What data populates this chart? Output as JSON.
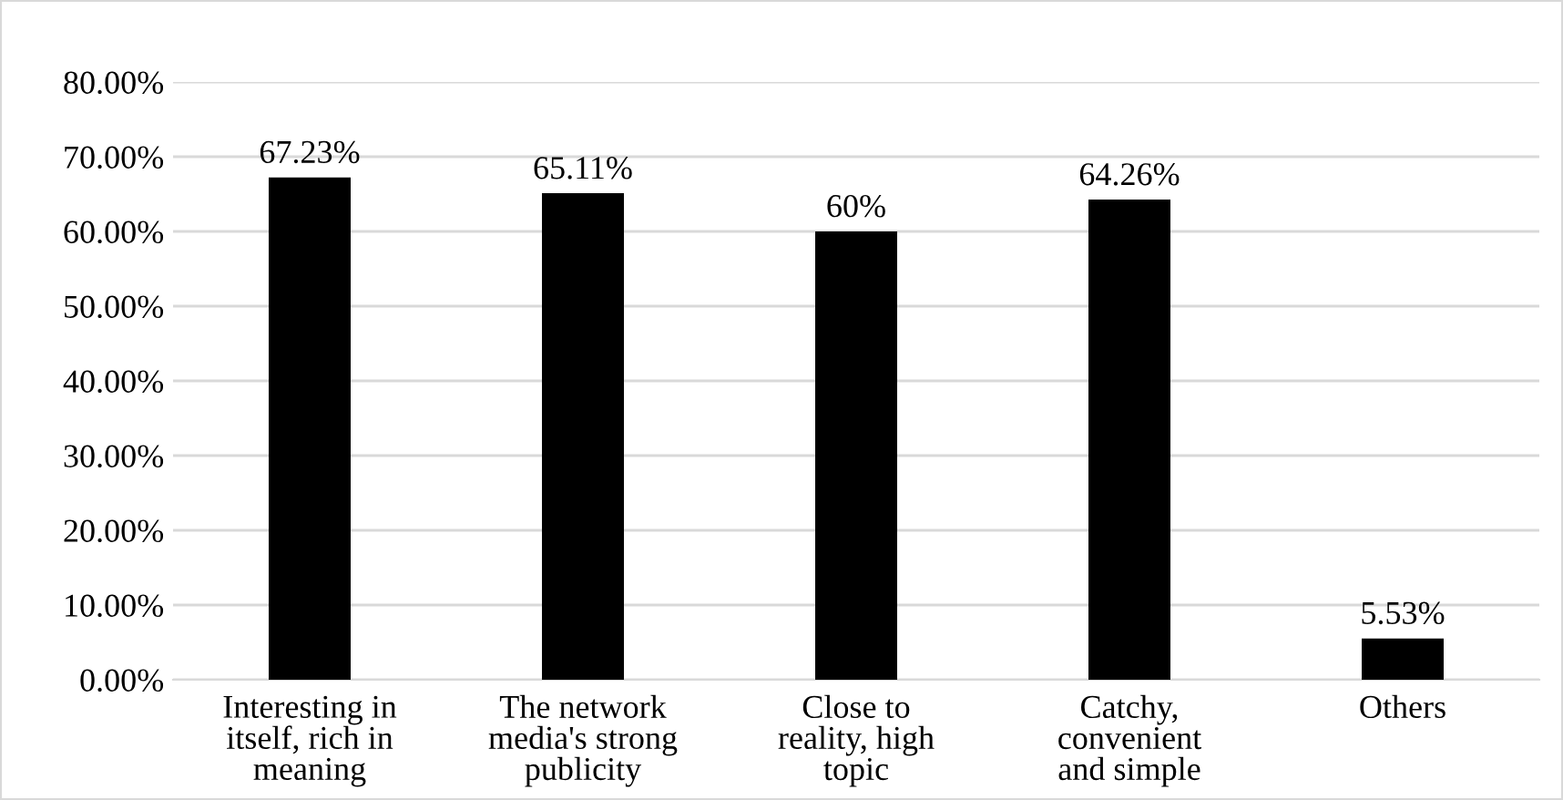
{
  "chart_data": {
    "type": "bar",
    "categories": [
      "Interesting in\nitself, rich in\nmeaning",
      "The network\nmedia's strong\npublicity",
      "Close to\nreality, high\ntopic",
      "Catchy,\nconvenient\nand simple",
      "Others"
    ],
    "values": [
      67.23,
      65.11,
      60,
      64.26,
      5.53
    ],
    "value_labels": [
      "67.23%",
      "65.11%",
      "60%",
      "64.26%",
      "5.53%"
    ],
    "color": "#000000",
    "ylim": [
      0,
      80
    ],
    "yticks": [
      {
        "value": 0,
        "label": "0.00%"
      },
      {
        "value": 10,
        "label": "10.00%"
      },
      {
        "value": 20,
        "label": "20.00%"
      },
      {
        "value": 30,
        "label": "30.00%"
      },
      {
        "value": 40,
        "label": "40.00%"
      },
      {
        "value": 50,
        "label": "50.00%"
      },
      {
        "value": 60,
        "label": "60.00%"
      },
      {
        "value": 70,
        "label": "70.00%"
      },
      {
        "value": 80,
        "label": "80.00%"
      }
    ],
    "grid": "y"
  }
}
